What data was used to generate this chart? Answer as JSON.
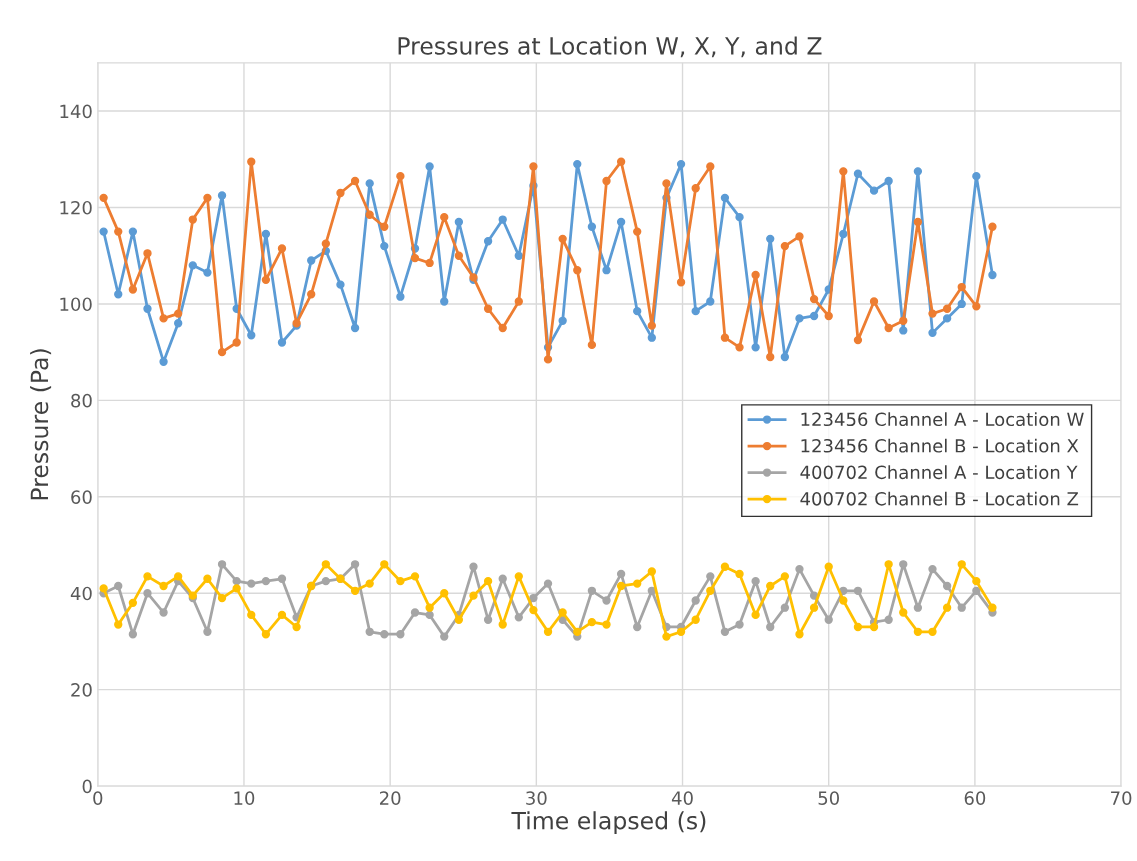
{
  "chart_data": {
    "type": "line",
    "title": "Pressures at Location W, X, Y, and Z",
    "xlabel": "Time elapsed (s)",
    "ylabel": "Pressure (Pa)",
    "x": [
      0.4,
      1.4,
      2.4,
      3.4,
      4.5,
      5.5,
      6.5,
      7.5,
      8.5,
      9.5,
      10.5,
      11.5,
      12.6,
      13.6,
      14.6,
      15.6,
      16.6,
      17.6,
      18.6,
      19.6,
      20.7,
      21.7,
      22.7,
      23.7,
      24.7,
      25.7,
      26.7,
      27.7,
      28.8,
      29.8,
      30.8,
      31.8,
      32.8,
      33.8,
      34.8,
      35.8,
      36.9,
      37.9,
      38.9,
      39.9,
      40.9,
      41.9,
      42.9,
      43.9,
      45.0,
      46.0,
      47.0,
      48.0,
      49.0,
      50.0,
      51.0,
      52.0,
      53.1,
      54.1,
      55.1,
      56.1,
      57.1,
      58.1,
      59.1,
      60.1,
      61.2
    ],
    "series": [
      {
        "name": "123456 Channel A - Location W",
        "color": "#5b9bd5",
        "values": [
          115,
          102,
          115,
          99,
          88,
          96,
          108,
          106.5,
          122.5,
          99,
          93.5,
          114.5,
          92,
          95.5,
          109,
          111,
          104,
          95,
          125,
          112,
          101.5,
          111.5,
          128.5,
          100.5,
          117,
          105,
          113,
          117.5,
          110,
          124.5,
          91,
          96.5,
          129,
          116,
          107,
          117,
          98.5,
          93,
          122,
          129,
          98.5,
          100.5,
          122,
          118,
          91,
          113.5,
          89,
          97,
          97.5,
          103,
          114.5,
          127,
          123.5,
          125.5,
          94.5,
          127.5,
          94,
          97,
          100,
          126.5,
          106
        ]
      },
      {
        "name": "123456 Channel B - Location X",
        "color": "#ed7d31",
        "values": [
          122,
          115,
          103,
          110.5,
          97,
          98,
          117.5,
          122,
          90,
          92,
          129.5,
          105,
          111.5,
          96,
          102,
          112.5,
          123,
          125.5,
          118.5,
          116,
          126.5,
          109.5,
          108.5,
          118,
          110,
          105.5,
          99,
          95,
          100.5,
          128.5,
          88.5,
          113.5,
          107,
          91.5,
          125.5,
          129.5,
          115,
          95.5,
          125,
          104.5,
          124,
          128.5,
          93,
          91,
          106,
          89,
          112,
          114,
          101,
          97.5,
          127.5,
          92.5,
          100.5,
          95,
          96.5,
          117,
          98,
          99,
          103.5,
          99.5,
          116
        ]
      },
      {
        "name": "400702 Channel A - Location Y",
        "color": "#a5a5a5",
        "values": [
          40,
          41.5,
          31.5,
          40,
          36,
          42.5,
          39,
          32,
          46,
          42.5,
          42,
          42.5,
          43,
          35,
          41.5,
          42.5,
          43,
          46,
          32,
          31.5,
          31.5,
          36,
          35.5,
          31,
          35.5,
          45.5,
          34.5,
          43,
          35,
          39,
          42,
          34.5,
          31,
          40.5,
          38.5,
          44,
          33,
          40.5,
          33,
          33,
          38.5,
          43.5,
          32,
          33.5,
          42.5,
          33,
          37,
          45,
          39.5,
          34.5,
          40.5,
          40.5,
          34,
          34.5,
          46,
          37,
          45,
          41.5,
          37,
          40.5,
          36
        ]
      },
      {
        "name": "400702 Channel B - Location Z",
        "color": "#ffc000",
        "values": [
          41,
          33.5,
          38,
          43.5,
          41.5,
          43.5,
          39.5,
          43,
          39,
          41,
          35.5,
          31.5,
          35.5,
          33,
          41.5,
          46,
          43,
          40.5,
          42,
          46,
          42.5,
          43.5,
          37,
          40,
          34.5,
          39.5,
          42.5,
          33.5,
          43.5,
          36.5,
          32,
          36,
          32,
          34,
          33.5,
          41.5,
          42,
          44.5,
          31,
          32,
          34.5,
          40.5,
          45.5,
          44,
          35.5,
          41.5,
          43.5,
          31.5,
          37,
          45.5,
          38.5,
          33,
          33,
          46,
          36,
          32,
          32,
          37,
          46,
          42.5,
          37
        ]
      }
    ],
    "xlim": [
      0,
      70
    ],
    "xticks": [
      0,
      10,
      20,
      30,
      40,
      50,
      60,
      70
    ],
    "ylim": [
      0,
      150
    ],
    "yticks": [
      0,
      20,
      40,
      60,
      80,
      100,
      120,
      140
    ],
    "grid": true,
    "legend": "right",
    "marker": "circle",
    "line_style": "solid"
  }
}
